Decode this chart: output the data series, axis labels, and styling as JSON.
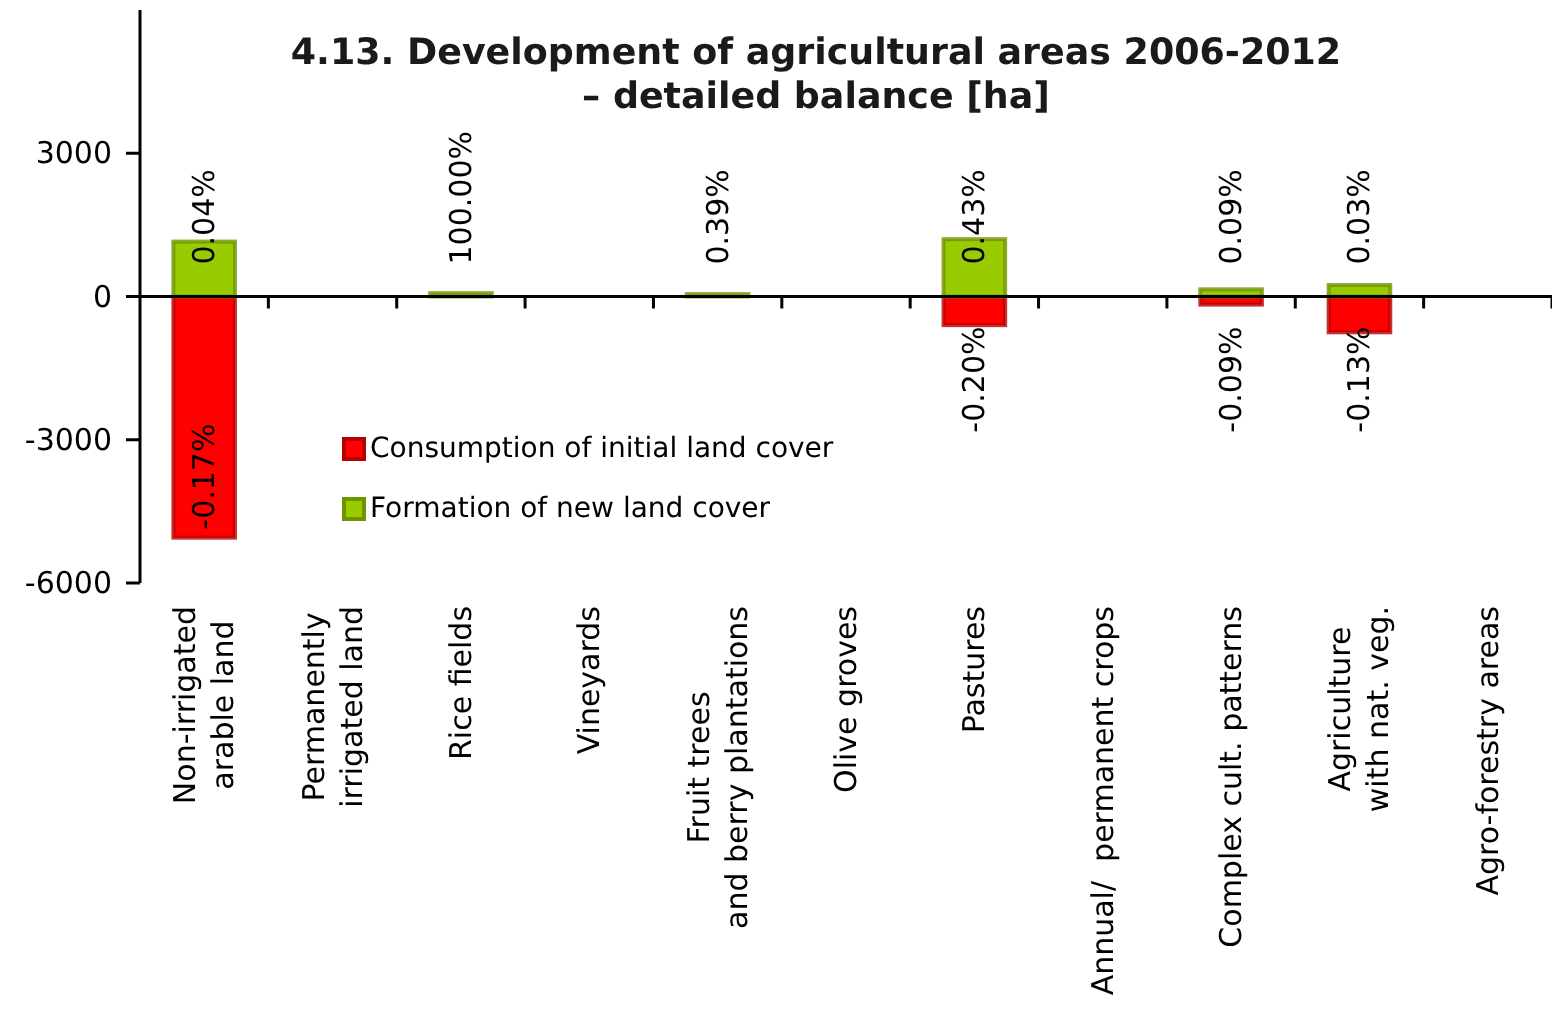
{
  "chart_data": {
    "type": "bar",
    "title": "4.13. Development of agricultural areas 2006-2012\n– detailed balance [ha]",
    "categories": [
      "Non-irrigated\narable land",
      "Permanently\nirrigated land",
      "Rice fields",
      "Vineyards",
      "Fruit trees\nand berry plantations",
      "Olive groves",
      "Pastures",
      "Annual/  permanent crops",
      "Complex cult. patterns",
      "Agriculture\nwith nat. veg.",
      "Agro-forestry areas"
    ],
    "series": [
      {
        "name": "Consumption of initial land cover",
        "color": "#ff0000",
        "values": [
          -5050,
          null,
          null,
          null,
          null,
          null,
          -600,
          null,
          -170,
          -750,
          null
        ]
      },
      {
        "name": "Formation of new land cover",
        "color": "#99cc00",
        "values": [
          1150,
          null,
          70,
          null,
          50,
          null,
          1200,
          null,
          150,
          240,
          null
        ]
      }
    ],
    "annotations": [
      {
        "text": "0.04%",
        "x": "Non-irrigated\narable land",
        "y": 1150
      },
      {
        "text": "100.00%",
        "x": "Rice fields",
        "y": 70
      },
      {
        "text": "0.39%",
        "x": "Fruit trees\nand berry plantations",
        "y": 50
      },
      {
        "text": "0.43%",
        "x": "Pastures",
        "y": 1200
      },
      {
        "text": "0.09%",
        "x": "Complex cult. patterns",
        "y": 150
      },
      {
        "text": "0.03%",
        "x": "Agriculture\nwith nat. veg.",
        "y": 240
      },
      {
        "text": "-0.17%",
        "x": "Non-irrigated\narable land",
        "y": -5050
      },
      {
        "text": "-0.20%",
        "x": "Pastures",
        "y": -600
      },
      {
        "text": "-0.09%",
        "x": "Complex cult. patterns",
        "y": -170
      },
      {
        "text": "-0.13%",
        "x": "Agriculture\nwith nat. veg.",
        "y": -750
      }
    ],
    "stacked": true,
    "ylim": [
      -6000,
      6000
    ],
    "yticks": [
      -6000,
      -3000,
      0,
      3000
    ],
    "legend": "bottom left"
  }
}
